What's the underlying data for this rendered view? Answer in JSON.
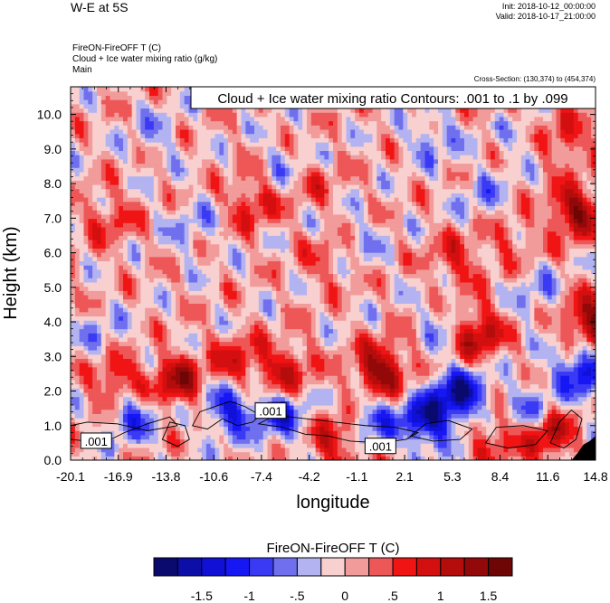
{
  "header": {
    "title": "W-E at 5S",
    "init": "Init: 2018-10-12_00:00:00",
    "valid": "Valid: 2018-10-17_21:00:00",
    "subtitle_lines": [
      "FireON-FireOFF T   (C)",
      "Cloud + Ice water mixing ratio   (g/kg)",
      "Main"
    ],
    "cross_section": "Cross-Section: (130,374) to (454,374)"
  },
  "chart_data": {
    "type": "heatmap",
    "title": "W-E at 5S",
    "xlabel": "longitude",
    "ylabel": "Height (km)",
    "xlim": [
      -20.1,
      14.8
    ],
    "ylim": [
      0.0,
      10.8
    ],
    "xticks": [
      "-20.1",
      "-16.9",
      "-13.8",
      "-10.6",
      "-7.4",
      "-4.2",
      "-1.1",
      "2.1",
      "5.3",
      "8.4",
      "11.6",
      "14.8"
    ],
    "yticks": [
      "0.0",
      "1.0",
      "2.0",
      "3.0",
      "4.0",
      "5.0",
      "6.0",
      "7.0",
      "8.0",
      "9.0",
      "10.0"
    ],
    "contour_info": "Cloud + Ice water mixing ratio Contours: .001 to .1 by .099",
    "contour_labels": [
      {
        "text": ".001",
        "x": -18.4,
        "y": 0.55
      },
      {
        "text": ".001",
        "x": -6.8,
        "y": 1.42
      },
      {
        "text": ".001",
        "x": 0.5,
        "y": 0.4
      }
    ],
    "colorbar": {
      "label": "FireON-FireOFF T  (C)",
      "levels": [
        -1.75,
        -1.5,
        -1.25,
        -1.0,
        -0.75,
        -0.5,
        -0.25,
        0,
        0.25,
        0.5,
        0.75,
        1.0,
        1.25,
        1.5,
        1.75
      ],
      "tick_labels": [
        "-1.5",
        "-1",
        "-.5",
        "0",
        ".5",
        "1",
        "1.5"
      ],
      "tick_values": [
        -1.5,
        -1.0,
        -0.5,
        0,
        0.5,
        1.0,
        1.5
      ],
      "colors": [
        "#0a0a6e",
        "#0d0da8",
        "#1010d6",
        "#1717f4",
        "#3a3af5",
        "#7070ee",
        "#b3b3f1",
        "#f8d0d0",
        "#f29b9b",
        "#ee5757",
        "#f01414",
        "#d40f0f",
        "#b50c0c",
        "#930909",
        "#6e0606"
      ]
    },
    "anomalies": [
      {
        "x": 5.8,
        "y": 1.9,
        "v": -1.6
      },
      {
        "x": 3.5,
        "y": 1.15,
        "v": -1.5
      },
      {
        "x": -9.5,
        "y": 1.5,
        "v": -1.2
      },
      {
        "x": -6.0,
        "y": 1.3,
        "v": -1.0
      },
      {
        "x": -16.0,
        "y": 1.3,
        "v": -0.9
      },
      {
        "x": 0.0,
        "y": 1.2,
        "v": -0.8
      },
      {
        "x": 10.6,
        "y": 1.4,
        "v": -0.8
      },
      {
        "x": 13.9,
        "y": 2.6,
        "v": -1.3
      },
      {
        "x": 5.0,
        "y": 3.9,
        "v": -0.55
      },
      {
        "x": 4.0,
        "y": 9.3,
        "v": -0.55
      },
      {
        "x": 7.5,
        "y": 7.6,
        "v": -0.5
      },
      {
        "x": 9.5,
        "y": 9.6,
        "v": -0.5
      },
      {
        "x": -18.0,
        "y": 3.6,
        "v": -0.4
      },
      {
        "x": -12.0,
        "y": 6.8,
        "v": -0.4
      },
      {
        "x": -6.0,
        "y": 8.5,
        "v": -0.35
      },
      {
        "x": 11.0,
        "y": 4.8,
        "v": -0.45
      },
      {
        "x": -1.0,
        "y": 6.3,
        "v": -0.35
      },
      {
        "x": -14.5,
        "y": 9.5,
        "v": -0.35
      },
      {
        "x": 0.5,
        "y": 2.6,
        "v": 1.5
      },
      {
        "x": 6.8,
        "y": 3.7,
        "v": 1.3
      },
      {
        "x": 13.5,
        "y": 7.2,
        "v": 1.35
      },
      {
        "x": 14.4,
        "y": 4.0,
        "v": 1.4
      },
      {
        "x": -13.0,
        "y": 2.3,
        "v": 1.2
      },
      {
        "x": -17.0,
        "y": 2.3,
        "v": 0.9
      },
      {
        "x": 11.6,
        "y": 0.8,
        "v": 1.2
      },
      {
        "x": -9.0,
        "y": 2.8,
        "v": 0.8
      },
      {
        "x": -5.8,
        "y": 2.6,
        "v": 0.9
      },
      {
        "x": -2.5,
        "y": 0.6,
        "v": 0.9
      },
      {
        "x": -8.0,
        "y": 7.5,
        "v": 0.75
      },
      {
        "x": 5.5,
        "y": 5.8,
        "v": 0.65
      },
      {
        "x": 9.0,
        "y": 10.3,
        "v": 0.55
      },
      {
        "x": 12.8,
        "y": 9.3,
        "v": 0.7
      },
      {
        "x": -17.5,
        "y": 7.0,
        "v": 0.55
      },
      {
        "x": -3.0,
        "y": 5.8,
        "v": 0.45
      },
      {
        "x": -4.0,
        "y": 8.0,
        "v": 0.4
      },
      {
        "x": 9.0,
        "y": 6.5,
        "v": 0.45
      },
      {
        "x": 8.0,
        "y": 0.7,
        "v": 0.7
      }
    ]
  }
}
